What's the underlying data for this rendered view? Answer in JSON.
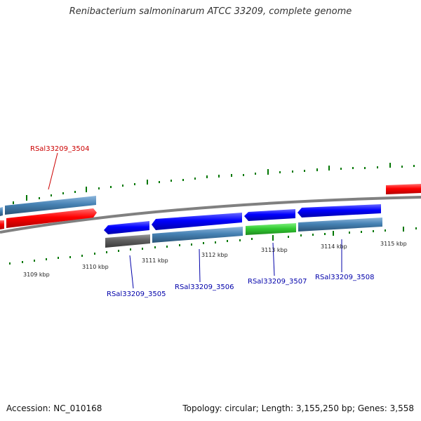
{
  "title": "Renibacterium salmoninarum ATCC 33209, complete genome",
  "footer": {
    "accession": "Accession: NC_010168",
    "summary": "Topology: circular; Length: 3,155,250 bp; Genes: 3,558"
  },
  "colors": {
    "backbone": "#808080",
    "cds_forward_red": "#ff0000",
    "cds_reverse_blue": "#0000ff",
    "gene_steelblue": "#4682b4",
    "gene_green": "#33cc33",
    "gene_gray": "#606060",
    "gc_ticks": "#007700",
    "label_red": "#cc0000",
    "label_blue": "#0000aa"
  },
  "scale_labels": [
    "3109 kbp",
    "3110 kbp",
    "3111 kbp",
    "3112 kbp",
    "3113 kbp",
    "3114 kbp",
    "3115 kbp"
  ],
  "gene_labels": [
    "RSal33209_3504",
    "RSal33209_3505",
    "RSal33209_3506",
    "RSal33209_3507",
    "RSal33209_3508"
  ]
}
